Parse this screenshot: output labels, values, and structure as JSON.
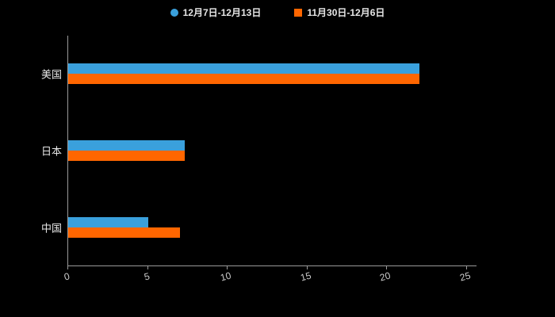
{
  "legend": {
    "items": [
      {
        "label": "12月7日-12月13日",
        "color": "#3aa0dc",
        "shape": "circle"
      },
      {
        "label": "11月30日-12月6日",
        "color": "#ff6600",
        "shape": "square"
      }
    ]
  },
  "chart_data": {
    "type": "bar",
    "orientation": "horizontal",
    "title": "",
    "xlabel": "",
    "ylabel": "",
    "categories": [
      "美国",
      "日本",
      "中国"
    ],
    "series": [
      {
        "name": "12月7日-12月13日",
        "color": "#3aa0dc",
        "values": [
          22,
          7.3,
          5
        ]
      },
      {
        "name": "11月30日-12月6日",
        "color": "#ff6600",
        "values": [
          22,
          7.3,
          7
        ]
      }
    ],
    "xlim": [
      0,
      25
    ],
    "xticks": [
      0,
      5,
      10,
      15,
      20,
      25
    ],
    "grid": false,
    "legend_position": "top",
    "background": "#000000",
    "text_color": "#e6e6e6",
    "axis_color": "#9a9a9a"
  }
}
